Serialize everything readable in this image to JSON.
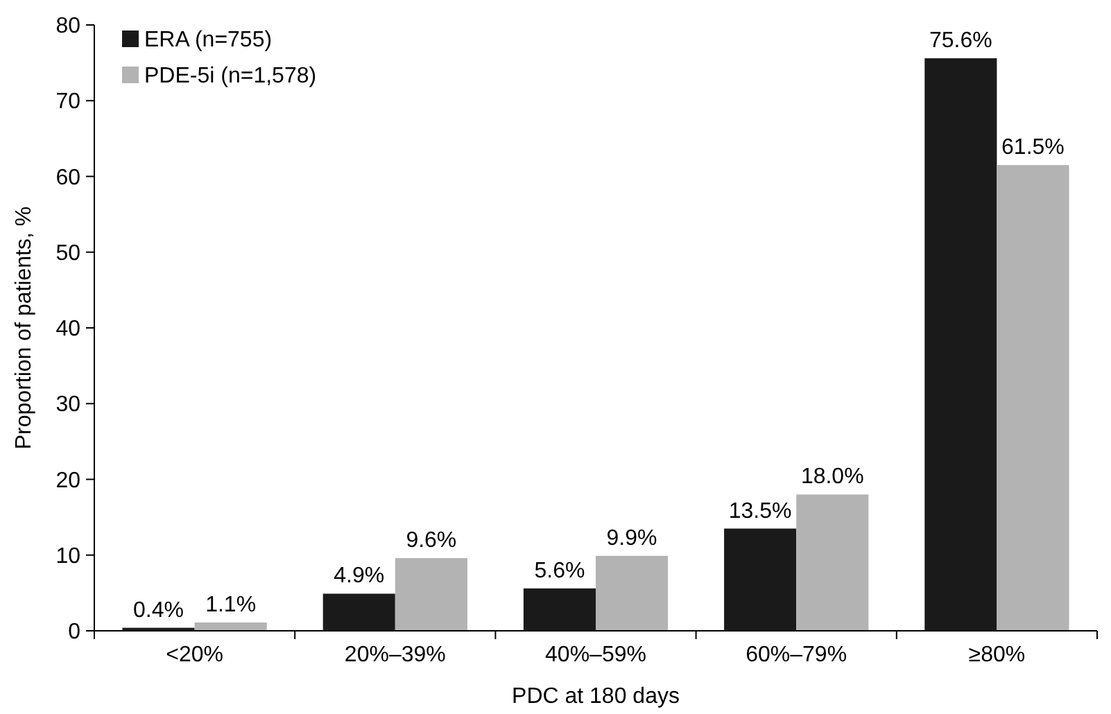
{
  "chart_data": {
    "type": "bar",
    "xlabel": "PDC at 180 days",
    "ylabel": "Proportion of patients, %",
    "categories": [
      "<20%",
      "20%–39%",
      "40%–59%",
      "60%–79%",
      "≥80%"
    ],
    "series": [
      {
        "name": "ERA (n=755)",
        "color": "#1a1a1a",
        "values": [
          0.4,
          4.9,
          5.6,
          13.5,
          75.6
        ],
        "value_labels": [
          "0.4%",
          "4.9%",
          "5.6%",
          "13.5%",
          "75.6%"
        ]
      },
      {
        "name": "PDE-5i (n=1,578)",
        "color": "#b3b3b3",
        "values": [
          1.1,
          9.6,
          9.9,
          18.0,
          61.5
        ],
        "value_labels": [
          "1.1%",
          "9.6%",
          "9.9%",
          "18.0%",
          "61.5%"
        ]
      }
    ],
    "ylim": [
      0,
      80
    ],
    "yticks": [
      0,
      10,
      20,
      30,
      40,
      50,
      60,
      70,
      80
    ],
    "grid": false,
    "legend": "top left"
  }
}
